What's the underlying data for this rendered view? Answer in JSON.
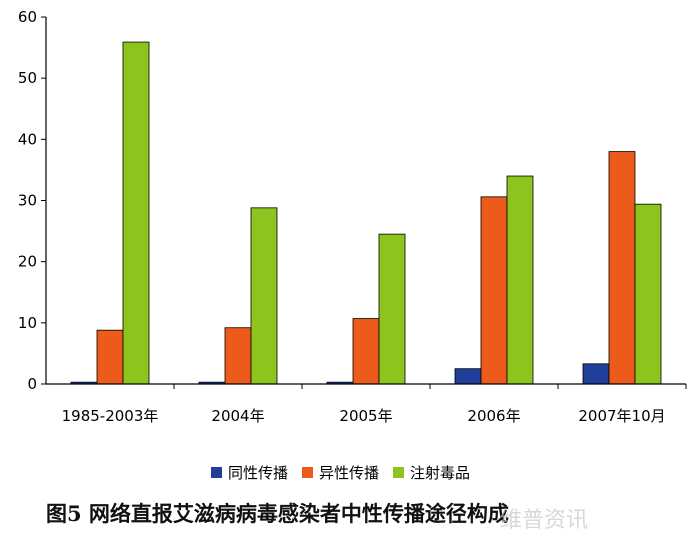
{
  "chart_data": {
    "type": "bar",
    "categories": [
      "1985-2003年",
      "2004年",
      "2005年",
      "2006年",
      "2007年10月"
    ],
    "series": [
      {
        "name": "同性传播",
        "color": "#1f3f9a",
        "values": [
          0.3,
          0.3,
          0.3,
          2.5,
          3.3
        ]
      },
      {
        "name": "异性传播",
        "color": "#ec5b1a",
        "values": [
          8.8,
          9.2,
          10.7,
          30.6,
          38.0
        ]
      },
      {
        "name": "注射毒品",
        "color": "#8ec41e",
        "values": [
          55.9,
          28.8,
          24.5,
          34.0,
          29.4
        ]
      }
    ],
    "ylim": [
      0,
      60
    ],
    "yticks": [
      "0",
      "10",
      "20",
      "30",
      "40",
      "50",
      "60"
    ],
    "grid": false,
    "legend_position": "bottom",
    "title": "图5  网络直报艾滋病病毒感染者中性传播途径构成"
  },
  "watermark": "维普资讯"
}
